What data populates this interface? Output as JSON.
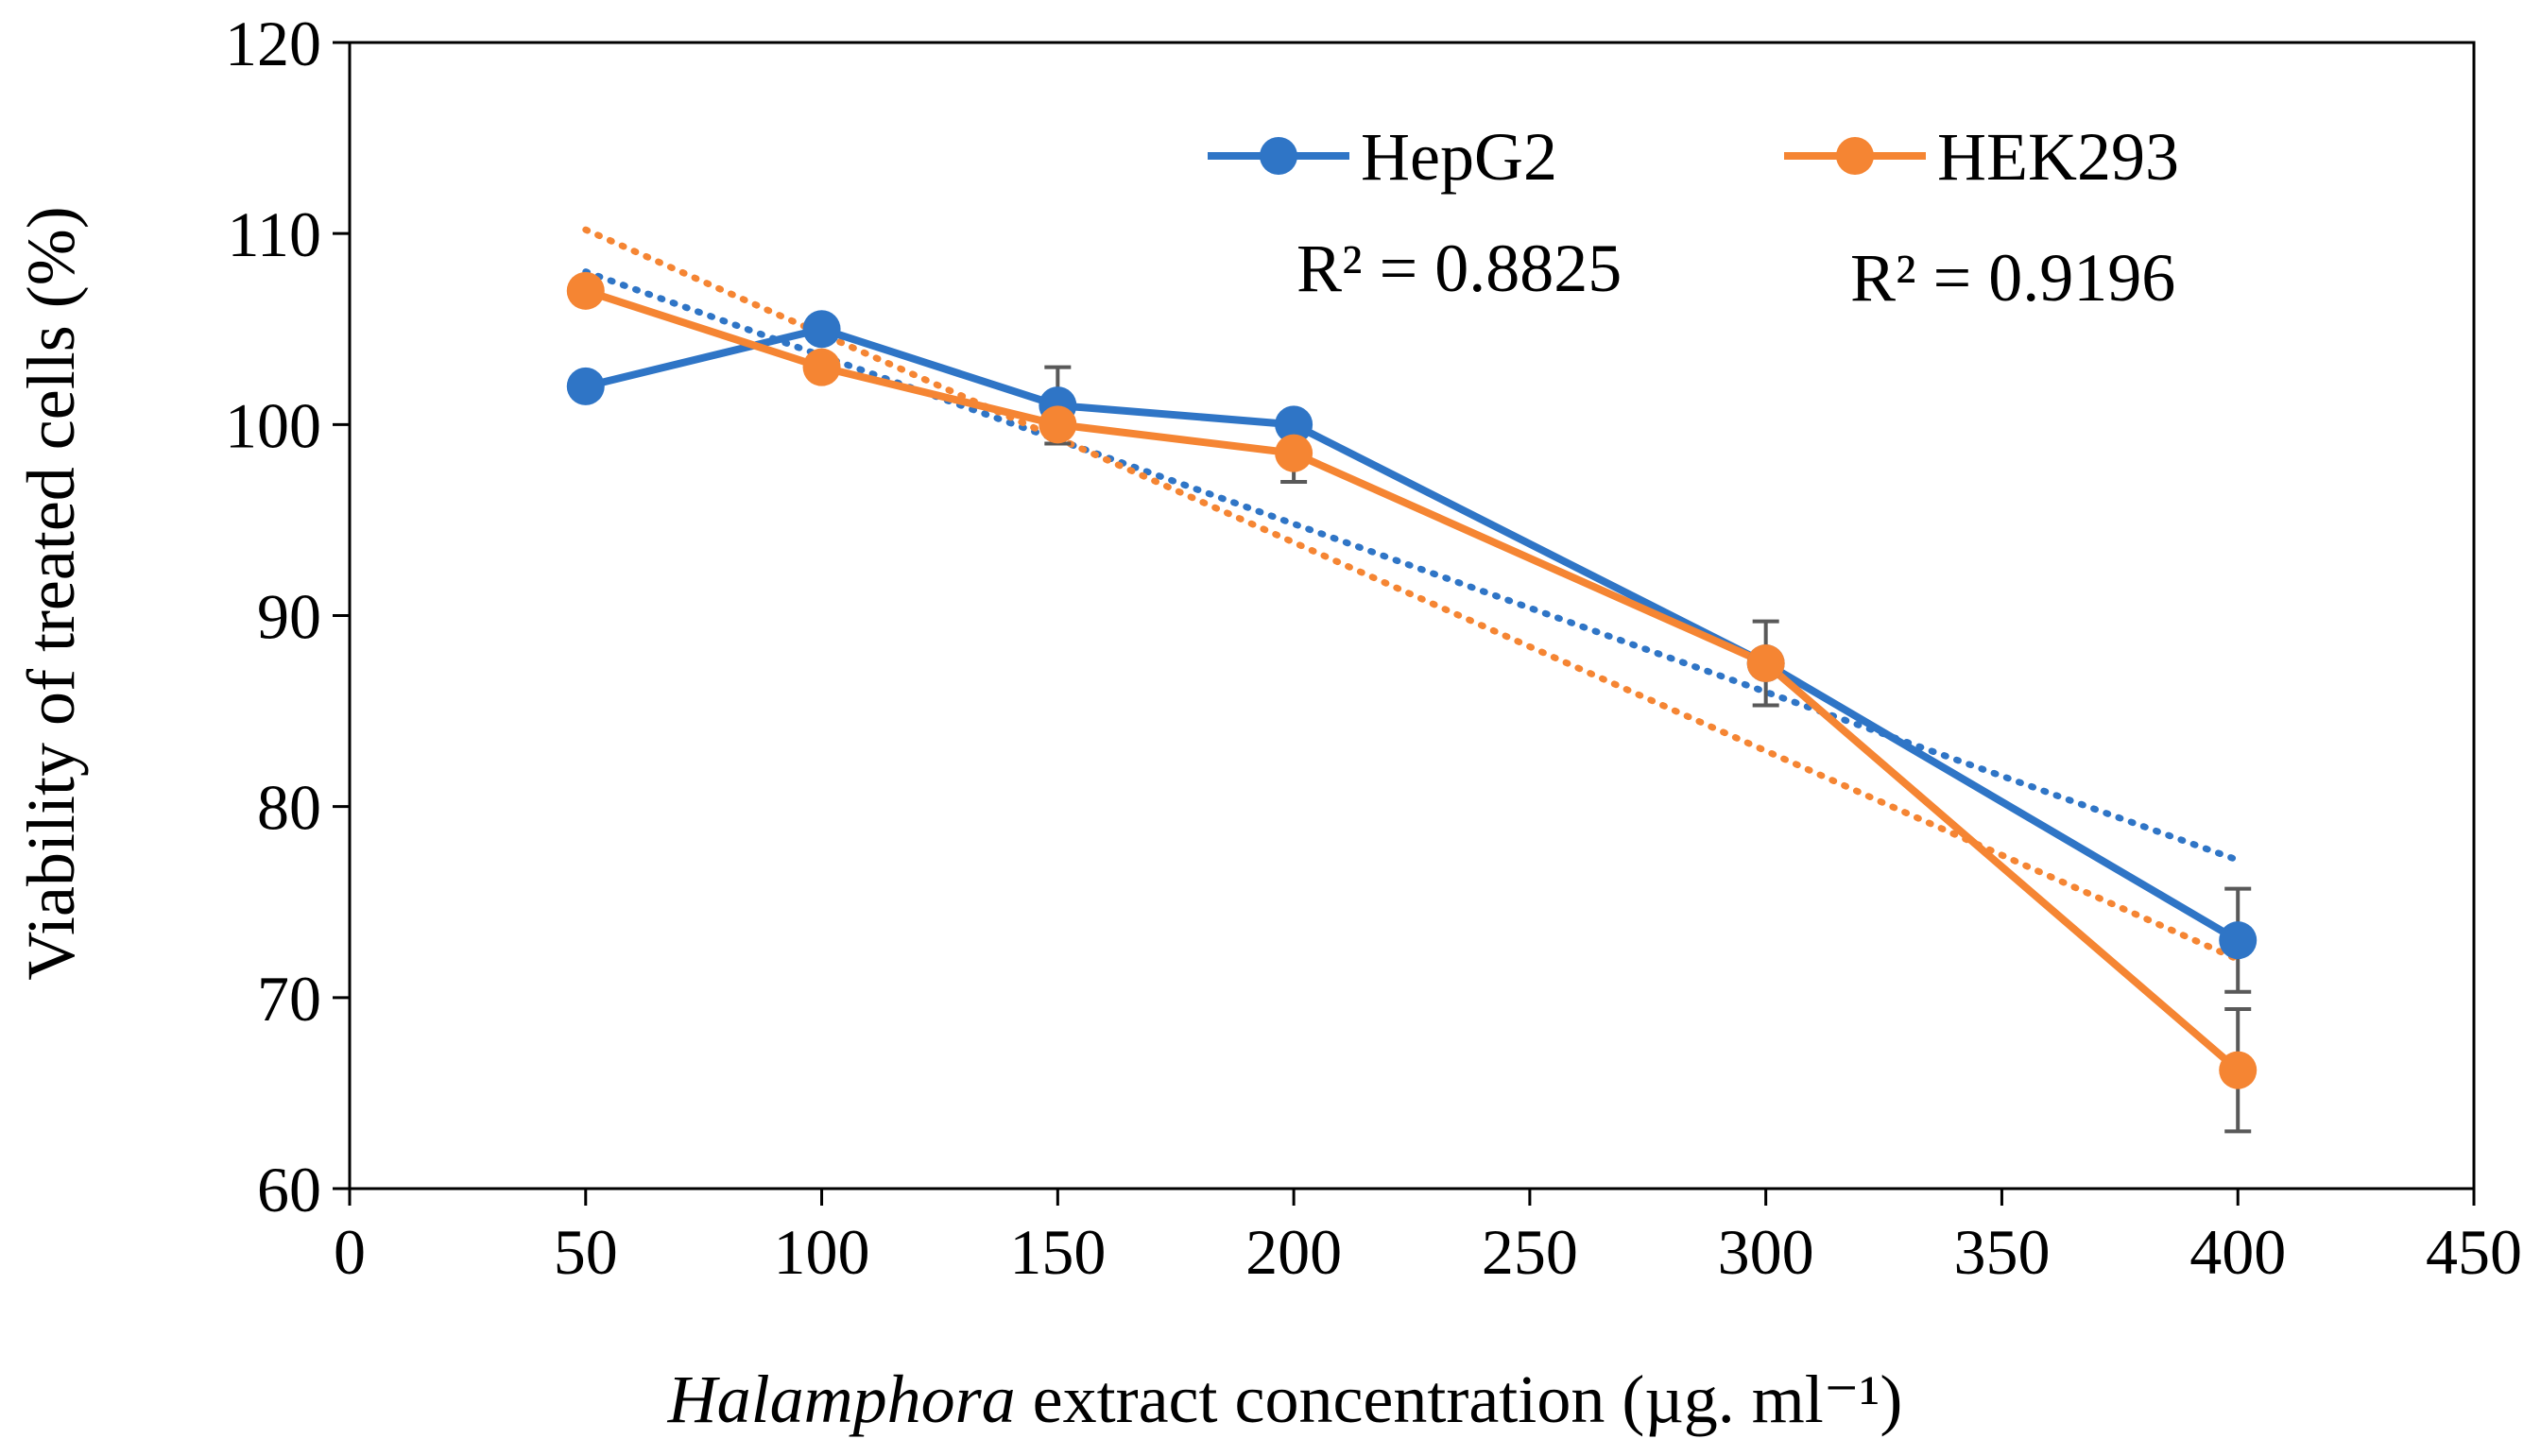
{
  "chart_data": {
    "type": "line",
    "title": "",
    "xlabel_italic": "Halamphora",
    "xlabel_rest": " extract concentration (µg. ml⁻¹)",
    "ylabel": "Viability of treated cells (%)",
    "xlim": [
      0,
      450
    ],
    "ylim": [
      60,
      120
    ],
    "xticks": [
      0,
      50,
      100,
      150,
      200,
      250,
      300,
      350,
      400,
      450
    ],
    "yticks": [
      60,
      70,
      80,
      90,
      100,
      110,
      120
    ],
    "grid": false,
    "legend_position": "top-center",
    "series": [
      {
        "name": "HepG2",
        "color": "#2F75C6",
        "x": [
          50,
          100,
          150,
          200,
          300,
          400
        ],
        "values": [
          102,
          105,
          101,
          100,
          87.5,
          73
        ],
        "error": [
          0,
          0,
          2,
          0,
          0,
          2.7
        ],
        "trendline": {
          "type": "linear",
          "r2_text": "R² = 0.8825",
          "start": [
            50,
            108
          ],
          "end": [
            400,
            77.2
          ]
        }
      },
      {
        "name": "HEK293",
        "color": "#F58533",
        "x": [
          50,
          100,
          150,
          200,
          300,
          400
        ],
        "values": [
          107,
          103,
          100,
          98.5,
          87.5,
          66.2
        ],
        "error": [
          0,
          0,
          0,
          1.5,
          2.2,
          3.2
        ],
        "trendline": {
          "type": "linear",
          "r2_text": "R² = 0.9196",
          "start": [
            50,
            110.2
          ],
          "end": [
            400,
            72
          ]
        }
      }
    ]
  }
}
